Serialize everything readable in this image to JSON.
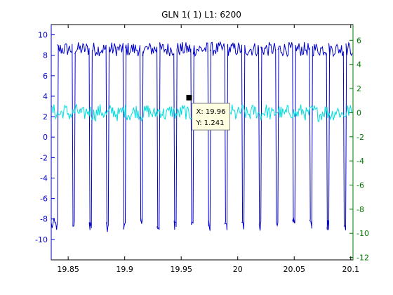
{
  "chart_data": {
    "type": "line",
    "title": "GLN  1( 1) L1: 6200",
    "xlabel": "",
    "ylabel": "",
    "xlim": [
      19.835,
      20.102
    ],
    "x_ticks": [
      19.85,
      19.9,
      19.95,
      20,
      20.05,
      20.1
    ],
    "x_tick_labels": [
      "19.85",
      "19.9",
      "19.95",
      "20",
      "20.05",
      "20.1"
    ],
    "left_axis": {
      "ylim": [
        -12,
        11
      ],
      "ticks": [
        -10,
        -8,
        -6,
        -4,
        -2,
        0,
        2,
        4,
        6,
        8,
        10
      ],
      "tick_labels": [
        "-10",
        "-8",
        "-6",
        "-4",
        "-2",
        "0",
        "2",
        "4",
        "6",
        "8",
        "10"
      ],
      "color": "#0000cc"
    },
    "right_axis": {
      "ylim": [
        -12.2,
        7.3
      ],
      "ticks": [
        -12,
        -10,
        -8,
        -6,
        -4,
        -2,
        0,
        2,
        4,
        6
      ],
      "tick_labels": [
        "-12",
        "-10",
        "-8",
        "-6",
        "-4",
        "-2",
        "0",
        "2",
        "4",
        "6"
      ],
      "color": "#007700"
    },
    "grid": false,
    "series": [
      {
        "axis": "left",
        "color": "#0000cc",
        "kind": "square-wave",
        "high_level": 8.6,
        "low_level": -8.6,
        "edge_times": [
          19.8405,
          19.8535,
          19.8555,
          19.8685,
          19.8705,
          19.8835,
          19.8855,
          19.8985,
          19.9005,
          19.9135,
          19.9155,
          19.9285,
          19.9305,
          19.9435,
          19.9455,
          19.9585,
          19.9605,
          19.9735,
          19.9755,
          19.9885,
          19.9905,
          20.0035,
          20.0055,
          20.0185,
          20.0205,
          20.0335,
          20.0355,
          20.0485,
          20.0505,
          20.0635,
          20.0655,
          20.0785,
          20.0805,
          20.0935,
          20.0955
        ]
      },
      {
        "axis": "right",
        "color": "#00dddd",
        "kind": "noise",
        "mean": 0.0,
        "amplitude": 0.6
      }
    ],
    "datatip": {
      "x_label": "X: 19.96",
      "y_label": "Y: 1.241",
      "x": 19.957,
      "y": 1.241
    }
  }
}
